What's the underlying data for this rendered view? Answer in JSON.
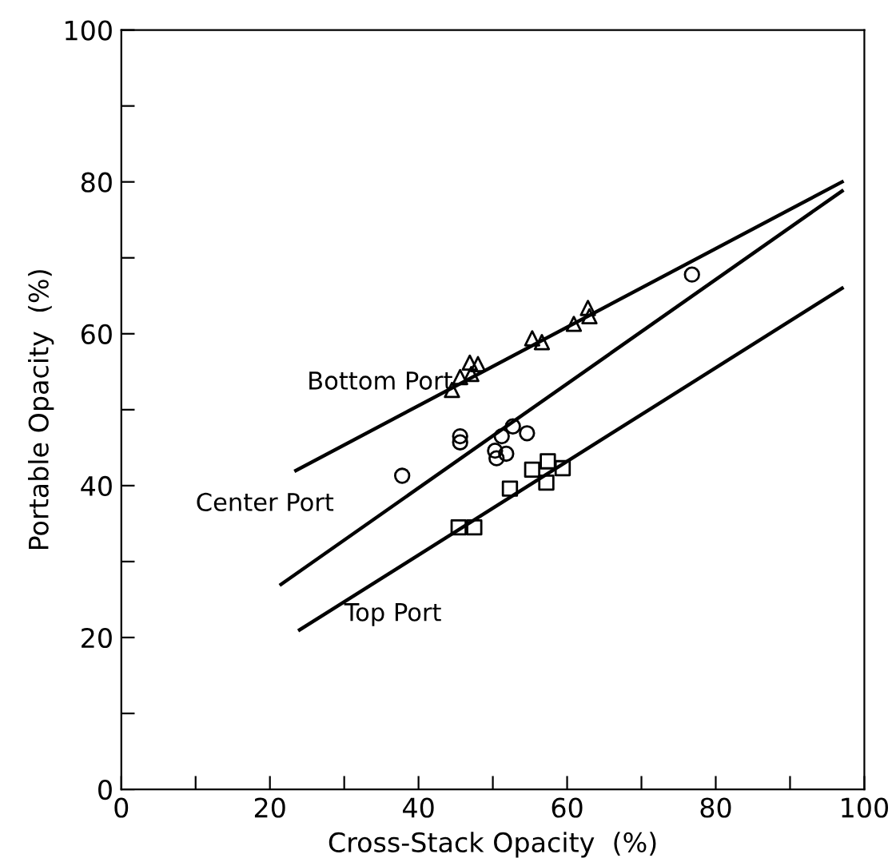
{
  "chart_data": {
    "type": "scatter",
    "xlabel": "Cross-Stack Opacity  (%)",
    "ylabel": "Portable Opacity  (%)",
    "xlim": [
      0,
      100
    ],
    "ylim": [
      0,
      100
    ],
    "xticks": [
      0,
      {
        "value": 10,
        "label": null
      },
      20,
      {
        "value": 30,
        "label": null
      },
      40,
      {
        "value": 50,
        "label": null
      },
      60,
      {
        "value": 70,
        "label": null
      },
      80,
      {
        "value": 90,
        "label": null
      },
      100
    ],
    "yticks": [
      0,
      {
        "value": 10,
        "label": null
      },
      20,
      {
        "value": 30,
        "label": null
      },
      40,
      {
        "value": 50,
        "label": null
      },
      60,
      {
        "value": 70,
        "label": null
      },
      80,
      {
        "value": 90,
        "label": null
      },
      100
    ],
    "grid": false,
    "legend": false,
    "series": [
      {
        "marker": "triangle",
        "color": "#000000",
        "x": [
          44.5,
          45.6,
          46.9,
          47.1,
          48.0,
          55.3,
          56.6,
          60.9,
          62.8,
          63.0
        ],
        "values": [
          52.6,
          54.3,
          56.2,
          54.7,
          56.0,
          59.4,
          58.9,
          61.3,
          63.4,
          62.3
        ]
      },
      {
        "marker": "circle",
        "color": "#000000",
        "x": [
          37.8,
          45.6,
          45.6,
          50.3,
          50.5,
          51.2,
          51.8,
          52.7,
          54.6,
          76.8
        ],
        "values": [
          41.3,
          46.5,
          45.7,
          44.6,
          43.6,
          46.5,
          44.2,
          47.8,
          46.9,
          67.8
        ]
      },
      {
        "marker": "square",
        "color": "#000000",
        "x": [
          45.4,
          47.5,
          52.3,
          55.3,
          57.2,
          57.4,
          59.4
        ],
        "values": [
          34.5,
          34.5,
          39.6,
          42.1,
          40.4,
          43.2,
          42.3
        ]
      },
      {
        "type": "line",
        "name": "Bottom Port",
        "color": "#000000",
        "line_style": "solid",
        "x": [
          23.5,
          97
        ],
        "values": [
          42,
          80
        ]
      },
      {
        "type": "line",
        "name": "Center Port",
        "color": "#000000",
        "line_style": "solid",
        "x": [
          21.5,
          97
        ],
        "values": [
          27,
          78.8
        ]
      },
      {
        "type": "line",
        "name": "Top Port",
        "color": "#000000",
        "line_style": "solid",
        "x": [
          24,
          97
        ],
        "values": [
          21,
          66
        ]
      }
    ]
  }
}
